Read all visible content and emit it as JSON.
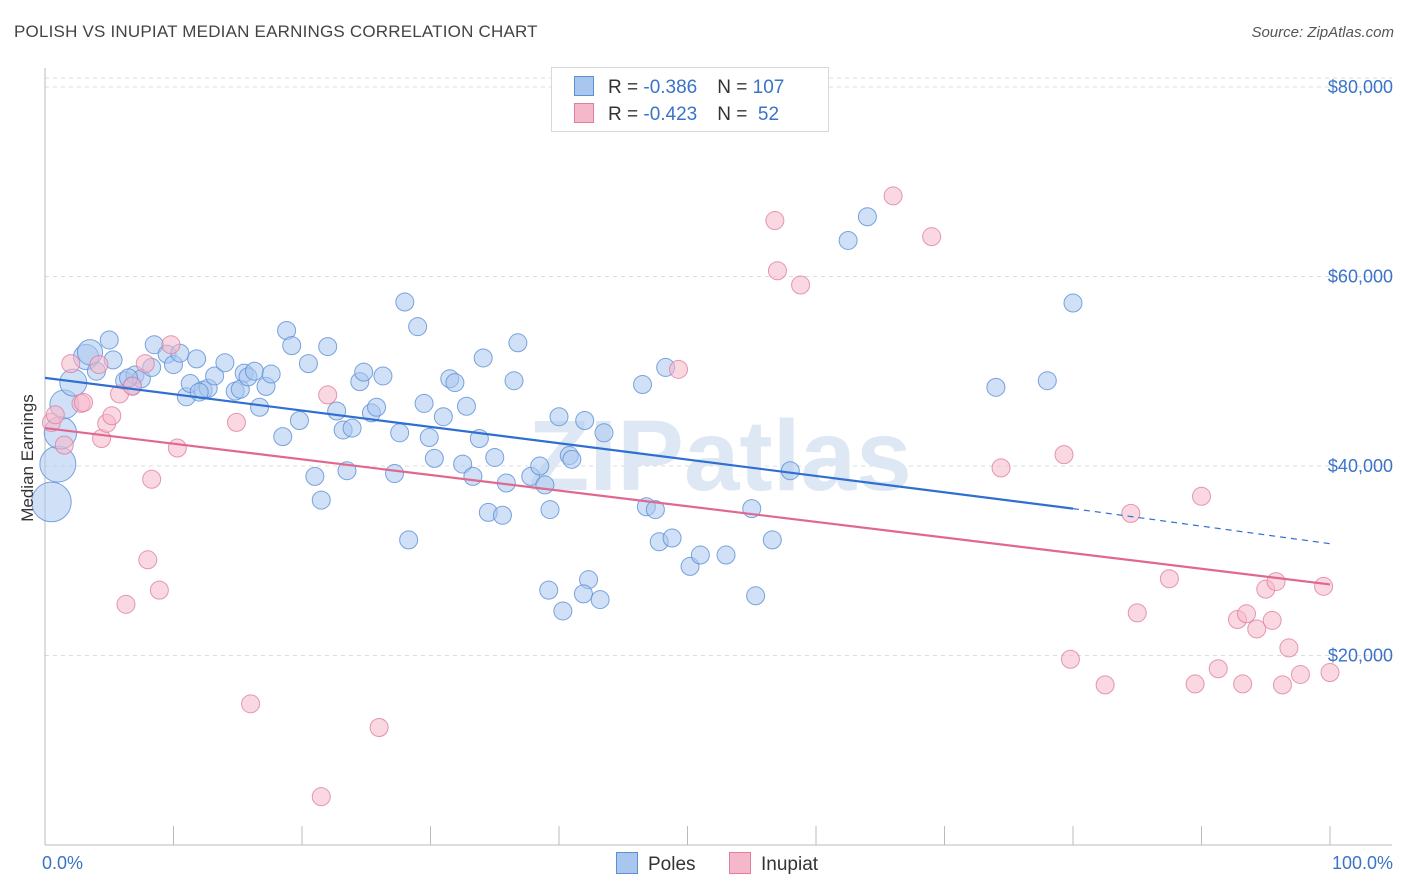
{
  "title": "POLISH VS INUPIAT MEDIAN EARNINGS CORRELATION CHART",
  "source": "Source: ZipAtlas.com",
  "watermark": "ZIPatlas",
  "colors": {
    "poles_fill": "#a9c6ee",
    "poles_stroke": "#5b8fd6",
    "poles_line": "#2f6fd0",
    "inupiat_fill": "#f5b8cb",
    "inupiat_stroke": "#e07ea0",
    "inupiat_line": "#e06890",
    "axis_label": "#3a73c8",
    "grid": "#dcdcdc"
  },
  "legend": {
    "rows": [
      {
        "r_label": "R = ",
        "r_value": "-0.386",
        "n_label": "N = ",
        "n_value": "107"
      },
      {
        "r_label": "R = ",
        "r_value": "-0.423",
        "n_label": "N = ",
        "n_value": " 52"
      }
    ]
  },
  "bottom_legend": {
    "poles": "Poles",
    "inupiat": "Inupiat"
  },
  "chart_data": {
    "type": "scatter",
    "title": "POLISH VS INUPIAT MEDIAN EARNINGS CORRELATION CHART",
    "xlabel": "",
    "ylabel": "Median Earnings",
    "xlim": [
      0,
      100
    ],
    "ylim": [
      0,
      82000
    ],
    "x_tick_labels": [
      "0.0%",
      "100.0%"
    ],
    "y_ticks": [
      20000,
      40000,
      60000,
      80000
    ],
    "y_tick_labels": [
      "$20,000",
      "$40,000",
      "$60,000",
      "$80,000"
    ],
    "grid": true,
    "legend_position": "top-center",
    "series": [
      {
        "name": "Poles",
        "trend": {
          "x": [
            0,
            80
          ],
          "y": [
            49300,
            35500
          ],
          "dashed_to": [
            100,
            31800
          ]
        },
        "points": [
          [
            0.5,
            36200,
            2.2
          ],
          [
            1.0,
            40200,
            2.0
          ],
          [
            1.2,
            43500,
            1.8
          ],
          [
            1.5,
            46500,
            1.6
          ],
          [
            2.2,
            48800,
            1.5
          ],
          [
            3.2,
            51500,
            1.4
          ],
          [
            4.0,
            50000,
            1.0
          ],
          [
            5.0,
            53300,
            1.0
          ],
          [
            5.3,
            51200,
            1.0
          ],
          [
            6.2,
            49000,
            1.0
          ],
          [
            6.8,
            48500,
            1.0
          ],
          [
            7.0,
            49600,
            1.0
          ],
          [
            7.5,
            49200,
            1.0
          ],
          [
            8.3,
            50400,
            1.0
          ],
          [
            8.5,
            52800,
            1.0
          ],
          [
            9.5,
            51800,
            1.0
          ],
          [
            10.0,
            50700,
            1.0
          ],
          [
            10.5,
            51900,
            1.0
          ],
          [
            11.0,
            47300,
            1.0
          ],
          [
            11.3,
            48700,
            1.0
          ],
          [
            11.8,
            51300,
            1.0
          ],
          [
            12.3,
            48000,
            1.0
          ],
          [
            12.7,
            48200,
            1.0
          ],
          [
            13.2,
            49500,
            1.0
          ],
          [
            14.0,
            50900,
            1.0
          ],
          [
            14.8,
            47900,
            1.0
          ],
          [
            15.2,
            48100,
            1.0
          ],
          [
            15.5,
            49800,
            1.0
          ],
          [
            15.8,
            49400,
            1.0
          ],
          [
            16.3,
            50000,
            1.0
          ],
          [
            16.7,
            46200,
            1.0
          ],
          [
            17.2,
            48400,
            1.0
          ],
          [
            17.6,
            49700,
            1.0
          ],
          [
            18.5,
            43100,
            1.0
          ],
          [
            18.8,
            54300,
            1.0
          ],
          [
            19.2,
            52700,
            1.0
          ],
          [
            19.8,
            44800,
            1.0
          ],
          [
            20.5,
            50800,
            1.0
          ],
          [
            21.0,
            38900,
            1.0
          ],
          [
            21.5,
            36400,
            1.0
          ],
          [
            22.0,
            52600,
            1.0
          ],
          [
            22.7,
            45800,
            1.0
          ],
          [
            23.2,
            43800,
            1.0
          ],
          [
            23.5,
            39500,
            1.0
          ],
          [
            23.9,
            44000,
            1.0
          ],
          [
            24.5,
            48900,
            1.0
          ],
          [
            24.8,
            49900,
            1.0
          ],
          [
            25.4,
            45600,
            1.0
          ],
          [
            25.8,
            46200,
            1.0
          ],
          [
            26.3,
            49500,
            1.0
          ],
          [
            27.2,
            39200,
            1.0
          ],
          [
            27.6,
            43500,
            1.0
          ],
          [
            28.0,
            57300,
            1.0
          ],
          [
            28.3,
            32200,
            1.0
          ],
          [
            29.0,
            54700,
            1.0
          ],
          [
            29.5,
            46600,
            1.0
          ],
          [
            29.9,
            43000,
            1.0
          ],
          [
            30.3,
            40800,
            1.0
          ],
          [
            31.0,
            45200,
            1.0
          ],
          [
            31.5,
            49200,
            1.0
          ],
          [
            31.9,
            48800,
            1.0
          ],
          [
            32.5,
            40200,
            1.0
          ],
          [
            32.8,
            46300,
            1.0
          ],
          [
            33.3,
            38900,
            1.0
          ],
          [
            33.8,
            42900,
            1.0
          ],
          [
            34.1,
            51400,
            1.0
          ],
          [
            34.5,
            35100,
            1.0
          ],
          [
            35.0,
            40900,
            1.0
          ],
          [
            35.6,
            34800,
            1.0
          ],
          [
            35.9,
            38200,
            1.0
          ],
          [
            36.5,
            49000,
            1.0
          ],
          [
            36.8,
            53000,
            1.0
          ],
          [
            37.8,
            38900,
            1.0
          ],
          [
            38.5,
            40000,
            1.0
          ],
          [
            38.9,
            38000,
            1.0
          ],
          [
            39.3,
            35400,
            1.0
          ],
          [
            40.0,
            45200,
            1.0
          ],
          [
            40.8,
            41100,
            1.0
          ],
          [
            41.0,
            40700,
            1.0
          ],
          [
            42.0,
            44800,
            1.0
          ],
          [
            42.3,
            28000,
            1.0
          ],
          [
            40.3,
            24700,
            1.0
          ],
          [
            39.2,
            26900,
            1.0
          ],
          [
            41.9,
            26500,
            1.0
          ],
          [
            43.5,
            43500,
            1.0
          ],
          [
            43.2,
            25900,
            1.0
          ],
          [
            46.5,
            48600,
            1.0
          ],
          [
            46.8,
            35700,
            1.0
          ],
          [
            47.5,
            35400,
            1.0
          ],
          [
            48.3,
            50400,
            1.0
          ],
          [
            47.8,
            32000,
            1.0
          ],
          [
            48.8,
            32400,
            1.0
          ],
          [
            50.2,
            29400,
            1.0
          ],
          [
            51.0,
            30600,
            1.0
          ],
          [
            53.0,
            30600,
            1.0
          ],
          [
            55.0,
            35500,
            1.0
          ],
          [
            55.3,
            26300,
            1.0
          ],
          [
            56.6,
            32200,
            1.0
          ],
          [
            58.0,
            39500,
            1.0
          ],
          [
            62.5,
            63800,
            1.0
          ],
          [
            64.0,
            66300,
            1.0
          ],
          [
            74.0,
            48300,
            1.0
          ],
          [
            78.0,
            49000,
            1.0
          ],
          [
            80.0,
            57200,
            1.0
          ],
          [
            3.5,
            52000,
            1.4
          ],
          [
            6.5,
            49300,
            1.0
          ],
          [
            12.0,
            47800,
            1.0
          ]
        ]
      },
      {
        "name": "Inupiat",
        "trend": {
          "x": [
            0,
            100
          ],
          "y": [
            44000,
            27500
          ]
        },
        "points": [
          [
            0.5,
            44600,
            1.0
          ],
          [
            0.8,
            45400,
            1.0
          ],
          [
            1.5,
            42200,
            1.0
          ],
          [
            2.0,
            50800,
            1.0
          ],
          [
            2.8,
            46600,
            1.0
          ],
          [
            3.0,
            46700,
            1.0
          ],
          [
            4.2,
            50700,
            1.0
          ],
          [
            4.4,
            42900,
            1.0
          ],
          [
            4.8,
            44500,
            1.0
          ],
          [
            5.2,
            45300,
            1.0
          ],
          [
            5.8,
            47600,
            1.0
          ],
          [
            6.3,
            25400,
            1.0
          ],
          [
            6.8,
            48400,
            1.0
          ],
          [
            7.8,
            50800,
            1.0
          ],
          [
            8.0,
            30100,
            1.0
          ],
          [
            8.3,
            38600,
            1.0
          ],
          [
            8.9,
            26900,
            1.0
          ],
          [
            9.8,
            52800,
            1.0
          ],
          [
            10.3,
            41900,
            1.0
          ],
          [
            14.9,
            44600,
            1.0
          ],
          [
            16.0,
            14900,
            1.0
          ],
          [
            21.5,
            5100,
            1.0
          ],
          [
            22.0,
            47500,
            1.0
          ],
          [
            26.0,
            12400,
            1.0
          ],
          [
            49.3,
            50200,
            1.0
          ],
          [
            56.8,
            65900,
            1.0
          ],
          [
            57.0,
            60600,
            1.0
          ],
          [
            58.8,
            59100,
            1.0
          ],
          [
            66.0,
            68500,
            1.0
          ],
          [
            69.0,
            64200,
            1.0
          ],
          [
            74.4,
            39800,
            1.0
          ],
          [
            79.3,
            41200,
            1.0
          ],
          [
            79.8,
            19600,
            1.0
          ],
          [
            82.5,
            16900,
            1.0
          ],
          [
            84.5,
            35000,
            1.0
          ],
          [
            85.0,
            24500,
            1.0
          ],
          [
            87.5,
            28100,
            1.0
          ],
          [
            89.5,
            17000,
            1.0
          ],
          [
            90.0,
            36800,
            1.0
          ],
          [
            91.3,
            18600,
            1.0
          ],
          [
            92.8,
            23800,
            1.0
          ],
          [
            93.2,
            17000,
            1.0
          ],
          [
            93.5,
            24400,
            1.0
          ],
          [
            94.3,
            22800,
            1.0
          ],
          [
            95.0,
            27000,
            1.0
          ],
          [
            95.5,
            23700,
            1.0
          ],
          [
            95.8,
            27800,
            1.0
          ],
          [
            96.3,
            16900,
            1.0
          ],
          [
            96.8,
            20800,
            1.0
          ],
          [
            97.7,
            18000,
            1.0
          ],
          [
            99.5,
            27300,
            1.0
          ],
          [
            100,
            18200,
            1.0
          ]
        ]
      }
    ]
  }
}
